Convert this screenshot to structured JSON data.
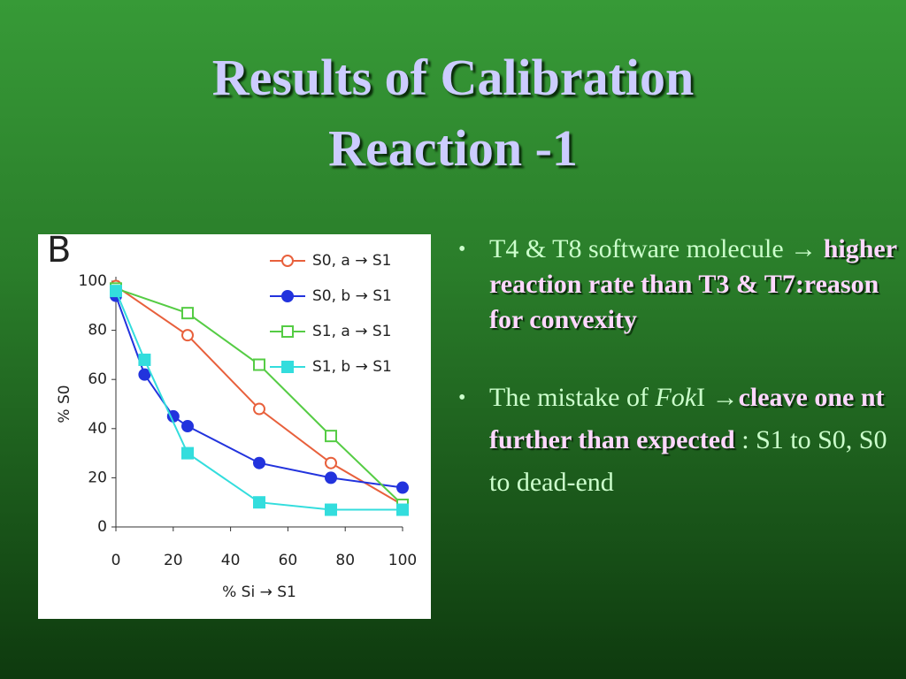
{
  "title": [
    "Results of Calibration",
    "Reaction -1"
  ],
  "chart_data": {
    "type": "line",
    "panel_label": "B",
    "x_label": "% Si → S1",
    "y_label": "% S0",
    "xlim": [
      0,
      100
    ],
    "ylim": [
      0,
      100
    ],
    "xticks": [
      0,
      20,
      40,
      60,
      80,
      100
    ],
    "yticks": [
      0,
      20,
      40,
      60,
      80,
      100
    ],
    "series": [
      {
        "name": "S0, a → S1",
        "color": "#e8603c",
        "marker": "open-circle",
        "x": [
          0,
          25,
          50,
          75,
          100
        ],
        "values": [
          98,
          78,
          48,
          26,
          9
        ]
      },
      {
        "name": "S0, b → S1",
        "color": "#2233dd",
        "marker": "filled-circle",
        "x": [
          0,
          10,
          20,
          25,
          50,
          75,
          100
        ],
        "values": [
          94,
          62,
          45,
          41,
          26,
          20,
          16
        ]
      },
      {
        "name": "S1, a → S1",
        "color": "#55cc44",
        "marker": "open-square",
        "x": [
          0,
          25,
          50,
          75,
          100
        ],
        "values": [
          97,
          87,
          66,
          37,
          9
        ]
      },
      {
        "name": "S1, b → S1",
        "color": "#33dddd",
        "marker": "filled-square",
        "x": [
          0,
          10,
          25,
          50,
          75,
          100
        ],
        "values": [
          96,
          68,
          30,
          10,
          7,
          7
        ]
      }
    ]
  },
  "bullets": [
    [
      {
        "text": "T4 & T8 software molecule → "
      },
      {
        "text": "higher reaction rate than T3 & T7:reason for convexity",
        "bold": true
      }
    ],
    [
      {
        "text": "The mistake of "
      },
      {
        "text": "Fok",
        "italic": true
      },
      {
        "text": "I "
      },
      {
        "text": "→"
      },
      {
        "text": "cleave one nt further than expected",
        "bold": true
      },
      {
        "text": " : S1 to S0, S0 to dead-end"
      }
    ]
  ]
}
